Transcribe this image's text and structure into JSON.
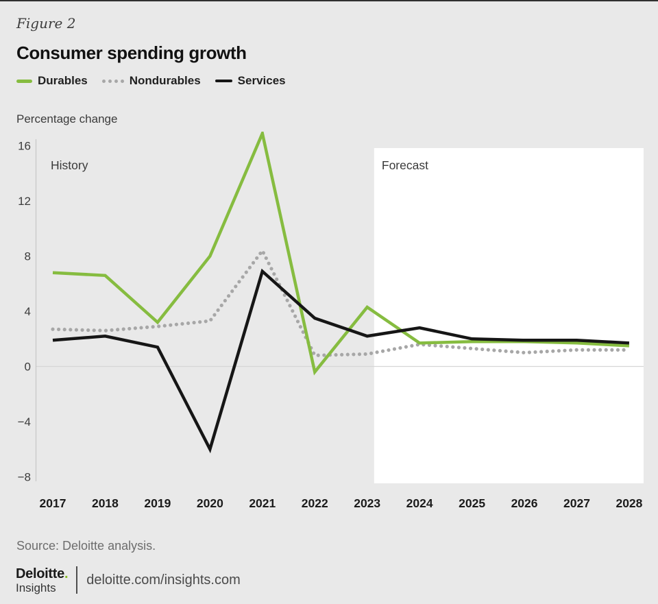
{
  "page": {
    "figure_label": "Figure 2",
    "title": "Consumer spending growth",
    "axis_unit_label": "Percentage change",
    "source": "Source: Deloitte analysis.",
    "footer": {
      "brand_name": "Deloitte",
      "brand_dot": ".",
      "brand_sub": "Insights",
      "url": "deloitte.com/insights.com"
    }
  },
  "legend": [
    {
      "label": "Durables",
      "color": "#86bc40",
      "style": "solid"
    },
    {
      "label": "Nondurables",
      "color": "#a7a7a7",
      "style": "dotted"
    },
    {
      "label": "Services",
      "color": "#161616",
      "style": "solid"
    }
  ],
  "chart_data": {
    "type": "line",
    "title": "Consumer spending growth",
    "ylabel": "Percentage change",
    "x": [
      2017,
      2018,
      2019,
      2020,
      2021,
      2022,
      2023,
      2024,
      2025,
      2026,
      2027,
      2028
    ],
    "series": [
      {
        "name": "Durables",
        "color": "#86bc40",
        "style": "solid",
        "values": [
          6.8,
          6.6,
          3.2,
          8.0,
          16.9,
          -0.4,
          4.3,
          1.7,
          1.8,
          1.8,
          1.7,
          1.5
        ]
      },
      {
        "name": "Nondurables",
        "color": "#a7a7a7",
        "style": "dotted",
        "values": [
          2.7,
          2.6,
          2.9,
          3.3,
          8.4,
          0.8,
          0.9,
          1.6,
          1.3,
          1.0,
          1.2,
          1.2
        ]
      },
      {
        "name": "Services",
        "color": "#161616",
        "style": "solid",
        "values": [
          1.9,
          2.2,
          1.4,
          -6.0,
          6.9,
          3.5,
          2.2,
          2.8,
          2.0,
          1.9,
          1.9,
          1.7
        ]
      }
    ],
    "yticks": [
      16,
      12,
      8,
      4,
      0,
      -4,
      -8
    ],
    "ylim": [
      -8,
      17
    ],
    "grid": "zero-line-only",
    "legend_position": "top-left",
    "regions": [
      {
        "label": "History",
        "span": [
          2017,
          2023.4
        ],
        "background": "#e9e9e9"
      },
      {
        "label": "Forecast",
        "span": [
          2023.4,
          2028.3
        ],
        "background": "#ffffff"
      }
    ]
  }
}
